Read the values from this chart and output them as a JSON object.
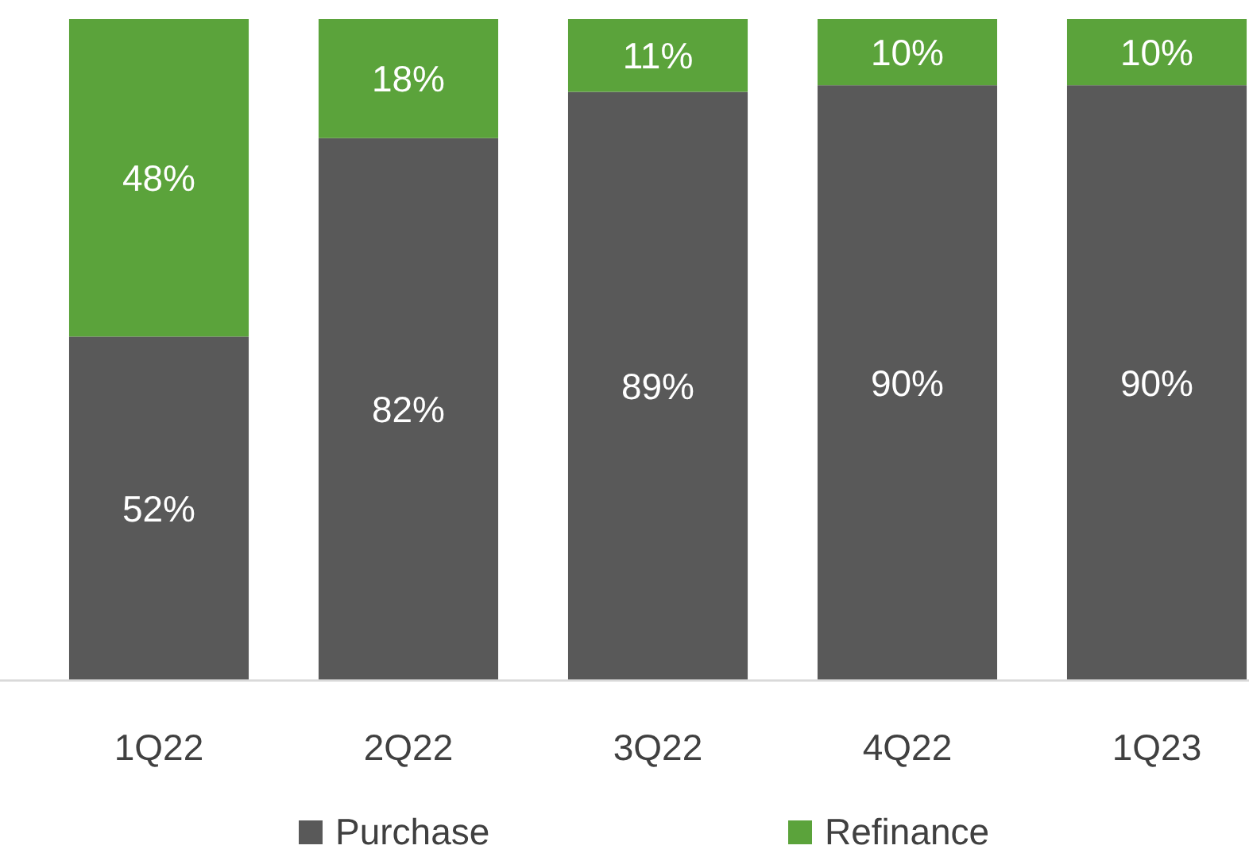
{
  "chart_data": {
    "type": "bar",
    "stacked": true,
    "categories": [
      "1Q22",
      "2Q22",
      "3Q22",
      "4Q22",
      "1Q23"
    ],
    "series": [
      {
        "name": "Purchase",
        "color": "#595959",
        "values": [
          52,
          82,
          89,
          90,
          90
        ],
        "value_labels": [
          "52%",
          "82%",
          "89%",
          "90%",
          "90%"
        ]
      },
      {
        "name": "Refinance",
        "color": "#5ba33b",
        "values": [
          48,
          18,
          11,
          10,
          10
        ],
        "value_labels": [
          "48%",
          "18%",
          "11%",
          "10%",
          "10%"
        ]
      }
    ],
    "ylim": [
      0,
      100
    ],
    "tick_labels": "x",
    "legend": "bottom"
  }
}
